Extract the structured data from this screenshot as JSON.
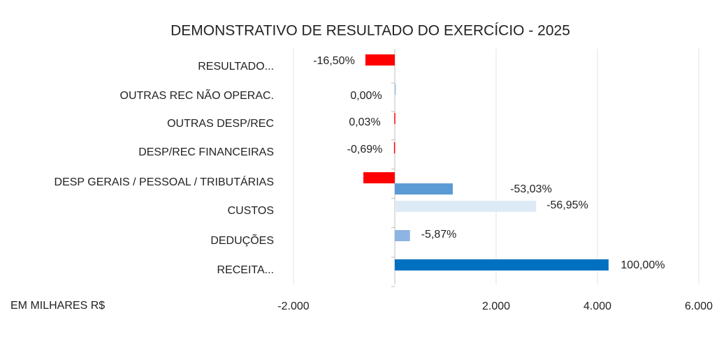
{
  "chart_data": {
    "type": "barh",
    "title": "DEMONSTRATIVO DE RESULTADO DO EXERCÍCIO - 2025",
    "axis_label": "EM MILHARES R$",
    "categories": [
      "RESULTADO...",
      "OUTRAS REC NÃO OPERAC.",
      "OUTRAS DESP/REC",
      "DESP/REC FINANCEIRAS",
      "DESP GERAIS / PESSOAL / TRIBUTÁRIAS",
      "CUSTOS",
      "DEDUÇÕES",
      "RECEITA..."
    ],
    "series": [
      {
        "colors": [
          "#ff0000",
          null,
          "#ff0000",
          "#ff0000",
          "#ff0000",
          null,
          null,
          null
        ],
        "values": [
          -580,
          null,
          -10,
          -15,
          -620,
          null,
          null,
          null
        ]
      },
      {
        "colors": [
          null,
          "#9dc3e6",
          null,
          null,
          "#5b9bd5",
          "#deebf7",
          "#8eb4e3",
          "#0070c0"
        ],
        "values": [
          null,
          0,
          null,
          null,
          1145,
          2790,
          300,
          4220
        ]
      }
    ],
    "data_labels": [
      "-16,50%",
      "0,00%",
      "0,03%",
      "-0,69%",
      "-53,03%",
      "-56,95%",
      "-5,87%",
      "100,00%"
    ],
    "xlim": [
      -2000,
      6000
    ],
    "xticks": [
      {
        "value": -2000,
        "label": "-2.000"
      },
      {
        "value": 2000,
        "label": "2.000"
      },
      {
        "value": 4000,
        "label": "4.000"
      },
      {
        "value": 6000,
        "label": "6.000"
      }
    ],
    "grid": true
  }
}
